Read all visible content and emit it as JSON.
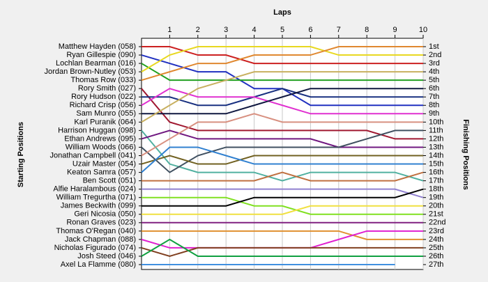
{
  "chart_data": {
    "type": "line",
    "title": "Laps",
    "y_label": "Starting Positions",
    "y2_label": "Finishing Positions",
    "x": [
      0,
      1,
      2,
      3,
      4,
      5,
      6,
      7,
      8,
      9,
      10
    ],
    "xlim": [
      0,
      10
    ],
    "xticks": [
      1,
      2,
      3,
      4,
      5,
      6,
      7,
      8,
      9,
      10
    ],
    "ylim": [
      1,
      27
    ],
    "grid": true,
    "finishing_positions": [
      "1st",
      "2nd",
      "3rd",
      "4th",
      "5th",
      "6th",
      "7th",
      "8th",
      "9th",
      "10th",
      "11th",
      "12th",
      "13th",
      "14th",
      "15th",
      "16th",
      "17th",
      "18th",
      "19th",
      "20th",
      "21st",
      "22nd",
      "23rd",
      "24th",
      "25th",
      "26th",
      "27th"
    ],
    "series": [
      {
        "name": "Matthew Hayden (058)",
        "color": "#cc2020",
        "values": [
          1,
          1,
          2,
          2,
          3,
          3,
          3,
          3,
          3,
          3,
          3
        ]
      },
      {
        "name": "Ryan Gillespie (090)",
        "color": "#2030c0",
        "values": [
          2,
          3,
          4,
          4,
          6,
          6,
          8,
          8,
          8,
          8,
          8
        ]
      },
      {
        "name": "Lochlan Bearman (016)",
        "color": "#20a020",
        "values": [
          3,
          5,
          5,
          5,
          5,
          5,
          5,
          5,
          5,
          5,
          5
        ]
      },
      {
        "name": "Jordan Brown-Nutley (053)",
        "color": "#e8d820",
        "values": [
          4,
          2,
          1,
          1,
          1,
          1,
          1,
          2,
          2,
          2,
          2
        ]
      },
      {
        "name": "Thomas Row (033)",
        "color": "#e08830",
        "values": [
          5,
          4,
          3,
          3,
          2,
          2,
          2,
          1,
          1,
          1,
          1
        ]
      },
      {
        "name": "Rory Smith (027)",
        "color": "#a01830",
        "values": [
          6,
          10,
          11,
          11,
          11,
          11,
          11,
          11,
          11,
          12,
          12
        ]
      },
      {
        "name": "Rory Hudson (022)",
        "color": "#183080",
        "values": [
          7,
          7,
          8,
          8,
          7,
          6,
          7,
          7,
          7,
          7,
          7
        ]
      },
      {
        "name": "Richard Crisp (056)",
        "color": "#e030d0",
        "values": [
          8,
          6,
          7,
          7,
          7,
          8,
          9,
          9,
          9,
          9,
          9
        ]
      },
      {
        "name": "Sam Munro (055)",
        "color": "#101840",
        "values": [
          9,
          9,
          9,
          9,
          8,
          7,
          6,
          6,
          6,
          6,
          6
        ]
      },
      {
        "name": "Karl Puranik (064)",
        "color": "#c8b060",
        "values": [
          10,
          8,
          6,
          5,
          4,
          4,
          4,
          4,
          4,
          4,
          4
        ]
      },
      {
        "name": "Harrison Huggan (098)",
        "color": "#50b0a0",
        "values": [
          11,
          15,
          16,
          16,
          16,
          17,
          16,
          16,
          16,
          16,
          17
        ]
      },
      {
        "name": "Ethan Andrews (095)",
        "color": "#701880",
        "values": [
          12,
          11,
          12,
          12,
          12,
          12,
          12,
          13,
          13,
          13,
          13
        ]
      },
      {
        "name": "William Woods (066)",
        "color": "#405060",
        "values": [
          13,
          16,
          14,
          13,
          13,
          13,
          13,
          13,
          12,
          11,
          11
        ]
      },
      {
        "name": "Jonathan Campbell (041)",
        "color": "#d89080",
        "values": [
          14,
          12,
          10,
          10,
          9,
          10,
          10,
          10,
          10,
          10,
          10
        ]
      },
      {
        "name": "Uzair Master (054)",
        "color": "#706020",
        "values": [
          15,
          14,
          15,
          15,
          14,
          14,
          14,
          14,
          14,
          14,
          14
        ]
      },
      {
        "name": "Keaton Samra (057)",
        "color": "#3080d0",
        "values": [
          16,
          13,
          13,
          14,
          15,
          15,
          15,
          15,
          15,
          15,
          15
        ]
      },
      {
        "name": "Ben Scott (051)",
        "color": "#c07040",
        "values": [
          17,
          17,
          17,
          17,
          17,
          16,
          17,
          17,
          17,
          17,
          16
        ]
      },
      {
        "name": "Alfie Haralambous (024)",
        "color": "#9080d0",
        "values": [
          18,
          18,
          18,
          18,
          18,
          18,
          18,
          18,
          18,
          18,
          19
        ]
      },
      {
        "name": "William Tregurtha (071)",
        "color": "#80e020",
        "values": [
          19,
          19,
          19,
          19,
          20,
          20,
          21,
          21,
          21,
          21,
          21
        ]
      },
      {
        "name": "James Beckwith (099)",
        "color": "#000000",
        "values": [
          20,
          20,
          20,
          20,
          19,
          19,
          19,
          19,
          19,
          19,
          18
        ]
      },
      {
        "name": "Geri Nicosia (050)",
        "color": "#f0e040",
        "values": [
          21,
          21,
          21,
          21,
          21,
          21,
          20,
          20,
          20,
          20,
          20
        ]
      },
      {
        "name": "Ronan Graves (023)",
        "color": "#802080",
        "values": [
          22,
          22,
          22,
          22,
          22,
          22,
          22,
          22,
          22,
          22,
          22
        ]
      },
      {
        "name": "Thomas O'Regan (040)",
        "color": "#e09030",
        "values": [
          23,
          23,
          23,
          23,
          23,
          23,
          23,
          23,
          24,
          24,
          24
        ]
      },
      {
        "name": "Jack Chapman (088)",
        "color": "#e020d0",
        "values": [
          24,
          25,
          25,
          25,
          25,
          25,
          25,
          24,
          23,
          23,
          23
        ]
      },
      {
        "name": "Nicholas Figurado (074)",
        "color": "#804020",
        "values": [
          25,
          26,
          25,
          25,
          25,
          25,
          25,
          25,
          25,
          25,
          25
        ]
      },
      {
        "name": "Josh Steed (046)",
        "color": "#10a040",
        "values": [
          26,
          24,
          26,
          26,
          26,
          26,
          26,
          26,
          26,
          26,
          26
        ]
      },
      {
        "name": "Axel La Flamme (080)",
        "color": "#4090e0",
        "values": [
          27,
          27,
          27,
          27,
          27,
          27,
          27,
          27,
          27,
          27,
          null
        ]
      }
    ]
  }
}
